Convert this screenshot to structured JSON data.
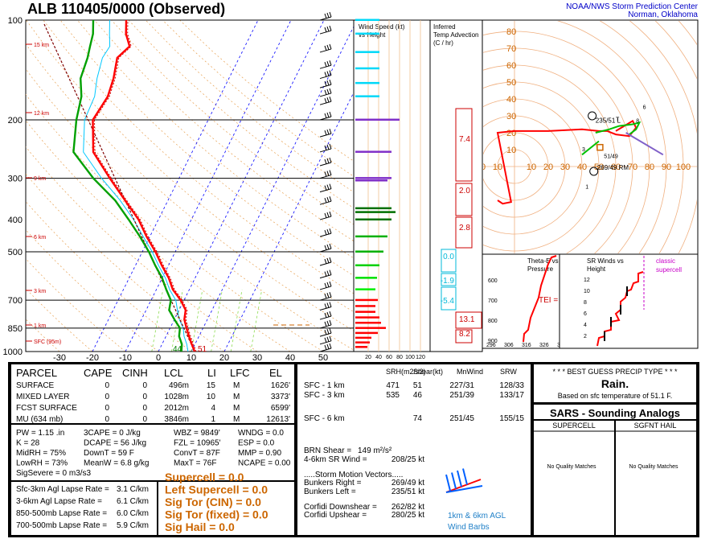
{
  "header": {
    "title": "ALB   110405/0000  (Observed)",
    "org_line1": "NOAA/NWS Storm Prediction Center",
    "org_line2": "Norman, Oklahoma"
  },
  "skewt": {
    "pressure_ticks": [
      "100",
      "200",
      "300",
      "400",
      "500",
      "700",
      "850",
      "1000"
    ],
    "temp_ticks": [
      "-30",
      "-20",
      "-10",
      "0",
      "10",
      "20",
      "30",
      "40",
      "50"
    ],
    "height_labels": [
      "15 km",
      "12 km",
      "9 km",
      "6 km",
      "3 km",
      "1 km",
      "SFC (95m)"
    ],
    "sfc_td_label": "44",
    "sfc_t_label": "51"
  },
  "wind_panel": {
    "title_line1": "Wind Speed (kt)",
    "title_line2": "vs Height",
    "ticks": [
      "20",
      "40",
      "60",
      "80",
      "100",
      "120"
    ]
  },
  "advection_panel": {
    "title_line1": "Inferred",
    "title_line2": "Temp Advection",
    "title_line3": "(C / hr)",
    "values": [
      "7.4",
      "2.0",
      "2.8",
      "0.0",
      "-1.9",
      "-5.4",
      "13.1",
      "8.2"
    ]
  },
  "hodograph": {
    "y_ticks": [
      "80",
      "70",
      "60",
      "50",
      "40",
      "30",
      "20",
      "10"
    ],
    "x_ticks": [
      "20",
      "10",
      "10",
      "20",
      "30",
      "40",
      "50",
      "60",
      "70",
      "80",
      "90",
      "100"
    ],
    "bunkers_left": "235/51 L",
    "bunkers_right": "269/49 RM",
    "marks": [
      "1",
      "3",
      "6",
      "8",
      "51/49",
      "T"
    ]
  },
  "theta_panel": {
    "title_line1": "Theta-E vs",
    "title_line2": "Pressure",
    "tei": "TEI = 24",
    "y_ticks": [
      "600",
      "700",
      "800",
      "900"
    ],
    "x_ticks": [
      "296",
      "306",
      "316",
      "326",
      "336"
    ]
  },
  "sr_panel": {
    "title_line1": "SR Winds vs",
    "title_line2": "Height",
    "classic_line1": "classic",
    "classic_line2": "supercell",
    "y_ticks": [
      "12",
      "10",
      "8",
      "6",
      "4",
      "2"
    ]
  },
  "parcel_table": {
    "headers": [
      "PARCEL",
      "CAPE",
      "CINH",
      "LCL",
      "LI",
      "LFC",
      "EL"
    ],
    "rows": [
      [
        "SURFACE",
        "0",
        "0",
        "496m",
        "15",
        "M",
        "1626'"
      ],
      [
        "MIXED LAYER",
        "0",
        "0",
        "1028m",
        "10",
        "M",
        "3373'"
      ],
      [
        "FCST SURFACE",
        "0",
        "0",
        "2012m",
        "4",
        "M",
        "6599'"
      ],
      [
        "MU   (634 mb)",
        "0",
        "0",
        "3846m",
        "1",
        "M",
        "12613'"
      ]
    ]
  },
  "params": {
    "col1": [
      "PW = 1.15 .in",
      "K = 28",
      "MidRH = 75%",
      "LowRH = 73%",
      "SigSevere = 0 m3/s3"
    ],
    "col2": [
      "3CAPE = 0 J/kg",
      "DCAPE = 56 J/kg",
      "DownT = 59 F",
      "MeanW = 6.8 g/kg"
    ],
    "col3": [
      "WBZ = 9849'",
      "FZL = 10965'",
      "ConvT = 87F",
      "MaxT = 76F"
    ],
    "col4": [
      "WNDG = 0.0",
      "ESP = 0.0",
      "MMP = 0.90",
      "NCAPE = 0.00"
    ]
  },
  "lapse_rates": [
    {
      "label": "Sfc-3km Agl Lapse Rate =",
      "value": "3.1 C/km"
    },
    {
      "label": "3-6km Agl Lapse Rate =",
      "value": "6.1 C/km"
    },
    {
      "label": "850-500mb Lapse Rate =",
      "value": "6.0 C/km"
    },
    {
      "label": "700-500mb Lapse Rate =",
      "value": "5.9 C/km"
    }
  ],
  "composites": [
    "Supercell = 0.0",
    "Left Supercell = 0.0",
    "Sig Tor (CIN) = 0.0",
    "Sig Tor (fixed) = 0.0",
    "Sig Hail = 0.0"
  ],
  "kinematics": {
    "headers": [
      "SRH(m2/s2)",
      "Shear(kt)",
      "MnWind",
      "SRW"
    ],
    "rows": [
      [
        "SFC - 1 km",
        "471",
        "51",
        "227/31",
        "128/33"
      ],
      [
        "SFC - 3 km",
        "535",
        "46",
        "251/39",
        "133/17"
      ],
      [
        "SFC - 6 km",
        "",
        "74",
        "251/45",
        "155/15"
      ]
    ],
    "brn_shear_label": "BRN Shear =",
    "brn_shear_value": "149 m²/s²",
    "srw46_label": "4-6km SR Wind =",
    "srw46_value": "208/25 kt",
    "storm_motion_title": ".....Storm Motion Vectors.....",
    "bunkers_right_label": "Bunkers Right =",
    "bunkers_right_value": "269/49 kt",
    "bunkers_left_label": "Bunkers Left =",
    "bunkers_left_value": "235/51 kt",
    "corfidi_down_label": "Corfidi Downshear =",
    "corfidi_down_value": "262/82 kt",
    "corfidi_up_label": "Corfidi Upshear =",
    "corfidi_up_value": "280/25 kt",
    "barbs_caption1": "1km & 6km AGL",
    "barbs_caption2": "Wind Barbs"
  },
  "precip": {
    "title": "* * * BEST GUESS PRECIP TYPE * * *",
    "type": "Rain.",
    "note": "Based on sfc temperature of 51.1 F."
  },
  "sars": {
    "title": "SARS - Sounding Analogs",
    "col1": "SUPERCELL",
    "col2": "SGFNT HAIL",
    "match1": "No Quality Matches",
    "match2": "No Quality Matches"
  },
  "colors": {
    "temperature": "#ff0000",
    "dewpoint": "#00a000",
    "wetbulb": "#00c8ff",
    "virtual": "#d00000",
    "accent_orange": "#cc6600",
    "link_blue": "#0000c8"
  },
  "chart_data": [
    {
      "type": "line",
      "title": "ALB 110405/0000 (Observed)",
      "xlabel": "",
      "ylabel": "",
      "y_scale": "log",
      "ylim": [
        1000,
        100
      ],
      "xlim": [
        -30,
        50
      ],
      "series": [
        {
          "name": "",
          "kind": "temperature",
          "points": [
            [
              1000,
              11
            ],
            [
              950,
              9
            ],
            [
              900,
              7
            ],
            [
              850,
              5
            ],
            [
              800,
              3
            ],
            [
              750,
              2
            ],
            [
              700,
              -1
            ],
            [
              650,
              -5
            ],
            [
              600,
              -8
            ],
            [
              550,
              -12
            ],
            [
              500,
              -16
            ],
            [
              450,
              -21
            ],
            [
              400,
              -26
            ],
            [
              350,
              -33
            ],
            [
              300,
              -41
            ],
            [
              250,
              -50
            ],
            [
              200,
              -55
            ],
            [
              170,
              -54
            ],
            [
              150,
              -55
            ],
            [
              130,
              -57
            ],
            [
              120,
              -55
            ],
            [
              110,
              -58
            ],
            [
              100,
              -60
            ]
          ]
        },
        {
          "name": "",
          "kind": "dewpoint",
          "points": [
            [
              1000,
              7
            ],
            [
              950,
              6
            ],
            [
              900,
              4
            ],
            [
              850,
              3
            ],
            [
              800,
              0
            ],
            [
              750,
              -3
            ],
            [
              700,
              -4
            ],
            [
              650,
              -7
            ],
            [
              600,
              -10
            ],
            [
              550,
              -14
            ],
            [
              500,
              -18
            ],
            [
              450,
              -23
            ],
            [
              400,
              -29
            ],
            [
              350,
              -36
            ],
            [
              300,
              -46
            ],
            [
              250,
              -56
            ],
            [
              200,
              -60
            ],
            [
              170,
              -62
            ],
            [
              150,
              -65
            ],
            [
              130,
              -66
            ],
            [
              120,
              -67
            ],
            [
              110,
              -68
            ],
            [
              100,
              -70
            ]
          ]
        }
      ]
    }
  ]
}
